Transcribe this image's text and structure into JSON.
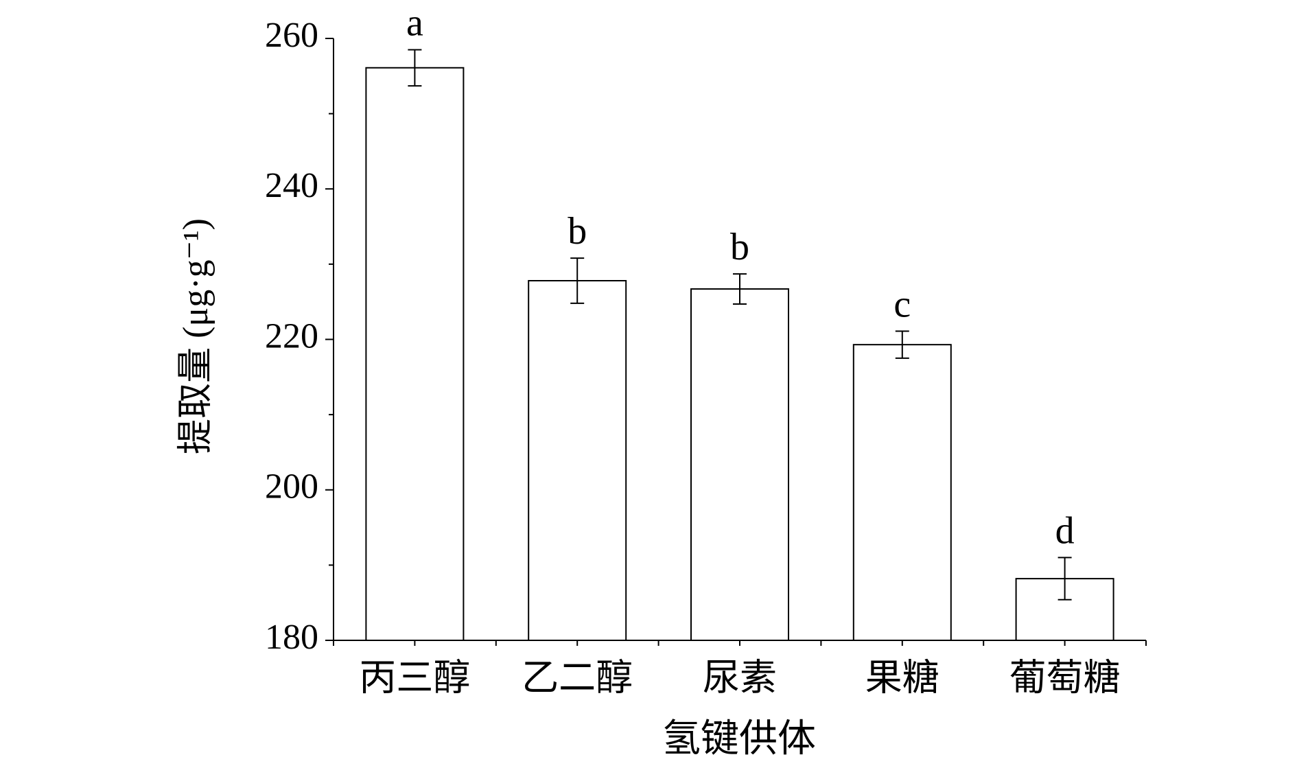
{
  "chart_data": {
    "type": "bar",
    "x_label": "氢键供体",
    "y_label": "提取量 (μg·g⁻¹)",
    "categories": [
      "丙三醇",
      "乙二醇",
      "尿素",
      "果糖",
      "葡萄糖"
    ],
    "values": [
      256.1,
      227.8,
      226.7,
      219.3,
      188.2
    ],
    "errors": [
      2.4,
      3.0,
      2.0,
      1.8,
      2.8
    ],
    "annotations": [
      "a",
      "b",
      "b",
      "c",
      "d"
    ],
    "color": "#ffffff",
    "ylim": [
      180,
      260
    ],
    "yticks": [
      180,
      200,
      220,
      240,
      260
    ],
    "minor_yticks": [
      190,
      210,
      230,
      250
    ]
  }
}
